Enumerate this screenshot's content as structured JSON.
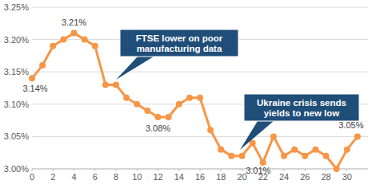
{
  "chart_data": {
    "type": "line",
    "x": [
      0,
      1,
      2,
      3,
      4,
      5,
      6,
      7,
      8,
      9,
      10,
      11,
      12,
      13,
      14,
      15,
      16,
      17,
      18,
      19,
      20,
      21,
      22,
      23,
      24,
      25,
      26,
      27,
      28,
      29,
      30,
      31
    ],
    "values": [
      3.14,
      3.16,
      3.19,
      3.2,
      3.21,
      3.2,
      3.19,
      3.13,
      3.13,
      3.11,
      3.1,
      3.09,
      3.08,
      3.08,
      3.1,
      3.11,
      3.11,
      3.06,
      3.03,
      3.02,
      3.02,
      3.04,
      3.01,
      3.05,
      3.02,
      3.03,
      3.02,
      3.03,
      3.02,
      3.0,
      3.03,
      3.05
    ],
    "color": "#f79646",
    "marker": "circle",
    "xlim": [
      0,
      32
    ],
    "xticks": [
      0,
      2,
      4,
      6,
      8,
      10,
      12,
      14,
      16,
      18,
      20,
      22,
      24,
      26,
      28,
      30
    ],
    "ylim": [
      3.0,
      3.25
    ],
    "yticks": [
      {
        "value": 3.0,
        "label": "3.00%"
      },
      {
        "value": 3.05,
        "label": "3.05%"
      },
      {
        "value": 3.1,
        "label": "3.10%"
      },
      {
        "value": 3.15,
        "label": "3.15%"
      },
      {
        "value": 3.2,
        "label": "3.20%"
      },
      {
        "value": 3.25,
        "label": "3.25%"
      }
    ],
    "grid": true,
    "annotations": [
      "FTSE lower on poor manufacturing data",
      "Ukraine crisis sends yields to new low",
      "3.14%",
      "3.21%",
      "3.08%",
      "3.01%",
      "3.05%"
    ]
  }
}
